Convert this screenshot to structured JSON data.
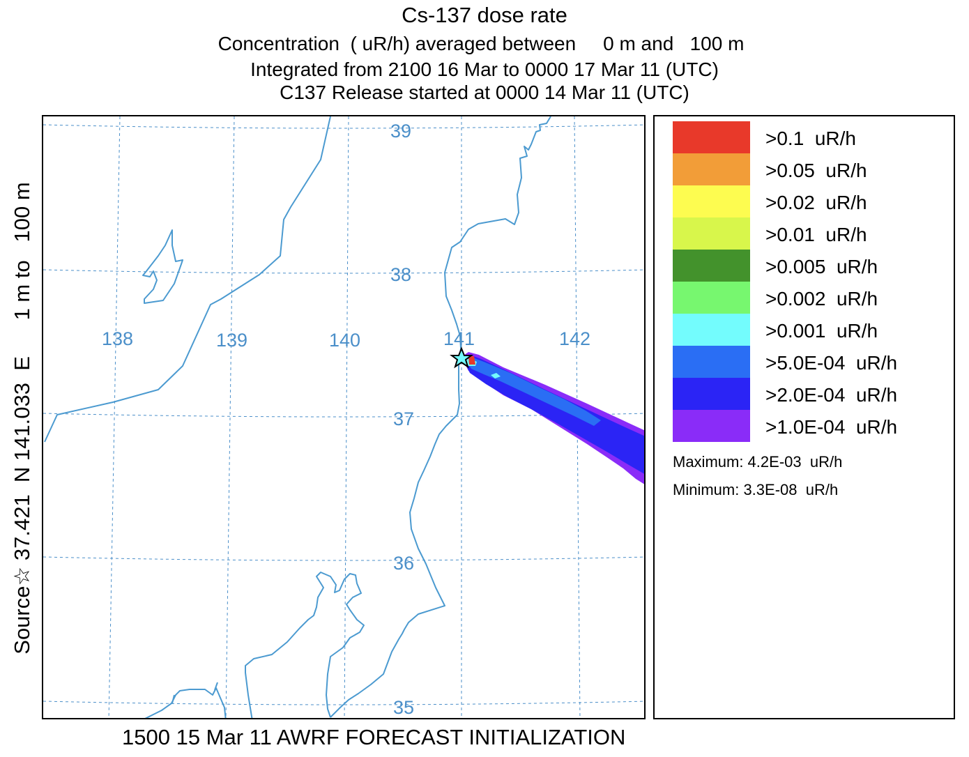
{
  "header": {
    "title": "Cs-137 dose rate",
    "concentration_line": "Concentration  ( uR/h) averaged between     0 m and   100 m",
    "integration_line": "Integrated from 2100 16 Mar to 0000 17 Mar 11 (UTC)",
    "release_line": "C137 Release started at 0000 14 Mar 11 (UTC)"
  },
  "side_label": "Source☆ 37.421  N 141.033  E      1 m to   100 m",
  "footer": "1500 15 Mar 11 AWRF FORECAST INITIALIZATION",
  "map": {
    "longitude_labels": [
      "138",
      "139",
      "140",
      "141",
      "142"
    ],
    "latitude_labels": [
      "39",
      "38",
      "37",
      "36",
      "35"
    ],
    "source_marker": "star-icon",
    "colors": {
      "grid": "#4b8fc9",
      "coast": "#4b9ad0"
    }
  },
  "legend": {
    "items": [
      {
        "label": ">0.1  uR/h",
        "color": "#e8392a"
      },
      {
        "label": ">0.05  uR/h",
        "color": "#f29d38"
      },
      {
        "label": ">0.02  uR/h",
        "color": "#fdfc50"
      },
      {
        "label": ">0.01  uR/h",
        "color": "#d8f64b"
      },
      {
        "label": ">0.005  uR/h",
        "color": "#43922c"
      },
      {
        "label": ">0.002  uR/h",
        "color": "#77f76f"
      },
      {
        "label": ">0.001  uR/h",
        "color": "#73fcfd"
      },
      {
        "label": ">5.0E-04  uR/h",
        "color": "#2a6ef4"
      },
      {
        "label": ">2.0E-04  uR/h",
        "color": "#2b24f5"
      },
      {
        "label": ">1.0E-04  uR/h",
        "color": "#8a2cf8"
      }
    ],
    "maximum": "Maximum: 4.2E-03  uR/h",
    "minimum": "Minimum: 3.3E-08  uR/h"
  }
}
